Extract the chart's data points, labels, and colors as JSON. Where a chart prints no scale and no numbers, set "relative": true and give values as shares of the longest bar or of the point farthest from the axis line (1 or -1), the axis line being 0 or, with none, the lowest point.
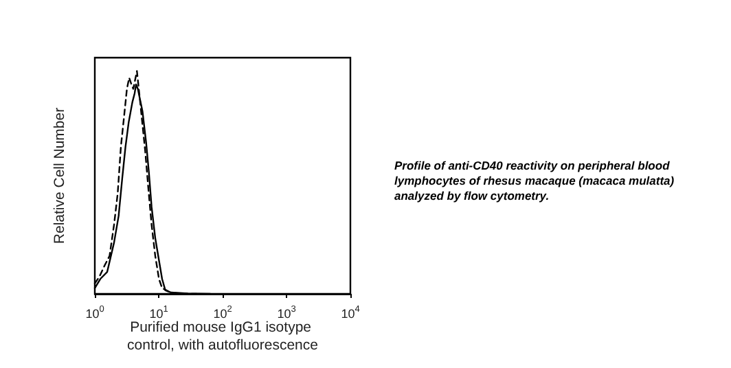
{
  "chart_data": {
    "type": "line",
    "relative": true,
    "log": "x",
    "xlabel": "Purified mouse IgG1 isotype control, with autofluorescence",
    "ylabel": "Relative Cell Number",
    "annotations": [
      "Profile of anti-CD40 reactivity on peripheral blood lymphocytes of rhesus macaque (macaca mulatta) analyzed by flow cytometry."
    ],
    "xlim": [
      1,
      10000
    ],
    "xticks": [
      {
        "value": 1,
        "label": "10$^{0}$"
      },
      {
        "value": 10,
        "label": "10$^{1}$"
      },
      {
        "value": 100,
        "label": "10$^{2}$"
      },
      {
        "value": 1000,
        "label": "10$^{3}$"
      },
      {
        "value": 10000,
        "label": "10$^{4}$"
      }
    ],
    "tick_labels": "x",
    "grid": false,
    "marker": "none",
    "series": [
      {
        "color": "#000000",
        "line_style": "solid",
        "x": [
          1,
          1.22,
          1.56,
          2.0,
          2.36,
          2.69,
          3.02,
          3.39,
          3.87,
          4.2,
          4.42,
          4.72,
          5.04,
          5.57,
          6.35,
          7.0,
          7.74,
          8.83,
          10.1,
          11.3,
          12.7,
          15.7,
          28.1,
          64
        ],
        "values": [
          0.026,
          0.067,
          0.098,
          0.23,
          0.35,
          0.52,
          0.66,
          0.77,
          0.86,
          0.9,
          0.94,
          0.92,
          0.88,
          0.82,
          0.68,
          0.55,
          0.39,
          0.25,
          0.15,
          0.067,
          0.016,
          0.006,
          0.002,
          0
        ]
      },
      {
        "color": "#000000",
        "line_style": "dashed",
        "x": [
          1,
          1.18,
          1.44,
          1.7,
          2.0,
          2.28,
          2.56,
          2.88,
          3.18,
          3.45,
          3.74,
          4.0,
          4.27,
          4.56,
          4.88,
          5.39,
          6.15,
          6.9,
          7.74,
          8.83,
          10.1,
          11.3,
          14.0,
          17.1,
          39
        ],
        "values": [
          0.047,
          0.077,
          0.13,
          0.17,
          0.31,
          0.45,
          0.66,
          0.8,
          0.92,
          0.97,
          0.94,
          0.92,
          0.96,
          1,
          0.92,
          0.8,
          0.64,
          0.47,
          0.31,
          0.17,
          0.067,
          0.026,
          0.012,
          0.002,
          0
        ]
      }
    ]
  }
}
